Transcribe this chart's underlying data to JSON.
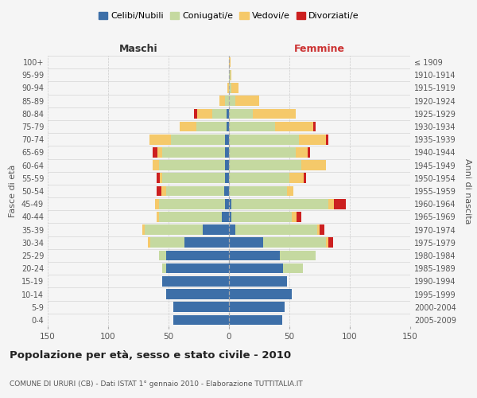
{
  "age_groups": [
    "0-4",
    "5-9",
    "10-14",
    "15-19",
    "20-24",
    "25-29",
    "30-34",
    "35-39",
    "40-44",
    "45-49",
    "50-54",
    "55-59",
    "60-64",
    "65-69",
    "70-74",
    "75-79",
    "80-84",
    "85-89",
    "90-94",
    "95-99",
    "100+"
  ],
  "birth_years": [
    "2005-2009",
    "2000-2004",
    "1995-1999",
    "1990-1994",
    "1985-1989",
    "1980-1984",
    "1975-1979",
    "1970-1974",
    "1965-1969",
    "1960-1964",
    "1955-1959",
    "1950-1954",
    "1945-1949",
    "1940-1944",
    "1935-1939",
    "1930-1934",
    "1925-1929",
    "1920-1924",
    "1915-1919",
    "1910-1914",
    "≤ 1909"
  ],
  "male": {
    "celibi": [
      46,
      46,
      52,
      55,
      52,
      52,
      37,
      22,
      6,
      3,
      4,
      3,
      3,
      3,
      3,
      2,
      2,
      0,
      0,
      0,
      0
    ],
    "coniugati": [
      0,
      0,
      0,
      0,
      3,
      6,
      28,
      48,
      52,
      55,
      48,
      52,
      55,
      52,
      45,
      25,
      12,
      3,
      0,
      0,
      0
    ],
    "vedovi": [
      0,
      0,
      0,
      0,
      0,
      0,
      2,
      2,
      2,
      3,
      4,
      2,
      5,
      4,
      18,
      14,
      12,
      5,
      1,
      0,
      0
    ],
    "divorziati": [
      0,
      0,
      0,
      0,
      0,
      0,
      0,
      0,
      0,
      0,
      4,
      3,
      0,
      4,
      0,
      0,
      3,
      0,
      0,
      0,
      0
    ]
  },
  "female": {
    "nubili": [
      44,
      46,
      52,
      48,
      45,
      42,
      28,
      5,
      2,
      2,
      0,
      0,
      0,
      0,
      0,
      0,
      0,
      0,
      0,
      0,
      0
    ],
    "coniugate": [
      0,
      0,
      0,
      0,
      16,
      30,
      52,
      68,
      50,
      80,
      48,
      50,
      60,
      55,
      58,
      38,
      20,
      5,
      2,
      1,
      0
    ],
    "vedove": [
      0,
      0,
      0,
      0,
      0,
      0,
      2,
      2,
      4,
      5,
      5,
      12,
      20,
      10,
      22,
      32,
      35,
      20,
      6,
      1,
      1
    ],
    "divorziate": [
      0,
      0,
      0,
      0,
      0,
      0,
      4,
      4,
      4,
      10,
      0,
      2,
      0,
      2,
      2,
      2,
      0,
      0,
      0,
      0,
      0
    ]
  },
  "colors": {
    "celibi": "#3d6fa8",
    "coniugati": "#c5d9a0",
    "vedovi": "#f5c96a",
    "divorziati": "#cc2020"
  },
  "title": "Popolazione per età, sesso e stato civile - 2010",
  "subtitle": "COMUNE DI URURI (CB) - Dati ISTAT 1° gennaio 2010 - Elaborazione TUTTITALIA.IT",
  "xlabel_left": "Maschi",
  "xlabel_right": "Femmine",
  "ylabel_left": "Fasce di età",
  "ylabel_right": "Anni di nascita",
  "xlim": 150,
  "bg_color": "#f5f5f5",
  "grid_color": "#cccccc"
}
